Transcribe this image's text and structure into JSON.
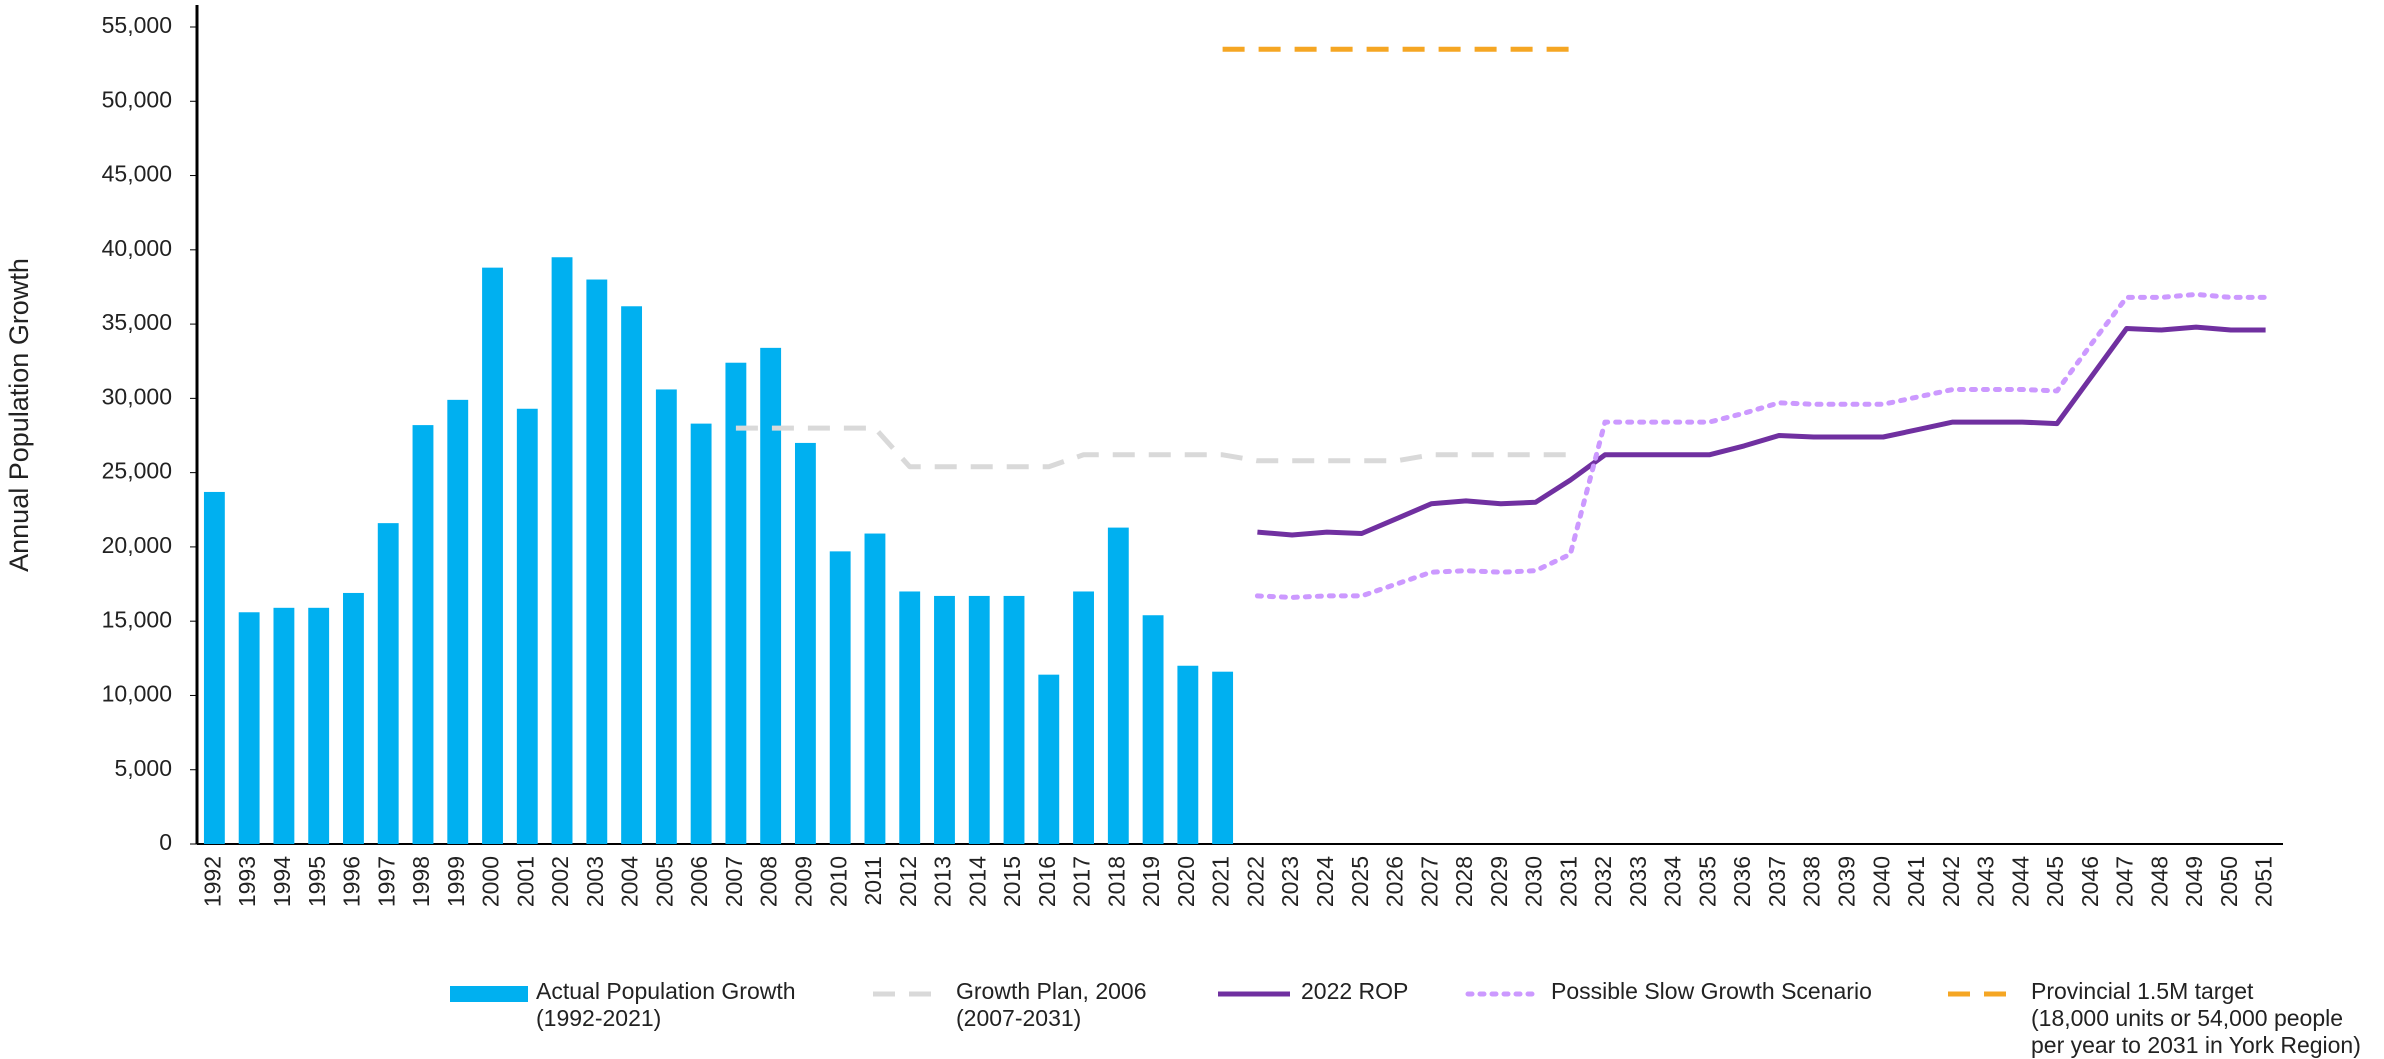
{
  "chart_data": {
    "type": "bar_line",
    "y_label": "Annual Population Growth",
    "categories": [
      "1992",
      "1993",
      "1994",
      "1995",
      "1996",
      "1997",
      "1998",
      "1999",
      "2000",
      "2001",
      "2002",
      "2003",
      "2004",
      "2005",
      "2006",
      "2007",
      "2008",
      "2009",
      "2010",
      "2011",
      "2012",
      "2013",
      "2014",
      "2015",
      "2016",
      "2017",
      "2018",
      "2019",
      "2020",
      "2021",
      "2022",
      "2023",
      "2024",
      "2025",
      "2026",
      "2027",
      "2028",
      "2029",
      "2030",
      "2031",
      "2032",
      "2033",
      "2034",
      "2035",
      "2036",
      "2037",
      "2038",
      "2039",
      "2040",
      "2041",
      "2042",
      "2043",
      "2044",
      "2045",
      "2046",
      "2047",
      "2048",
      "2049",
      "2050",
      "2051"
    ],
    "ylim": [
      0,
      55000
    ],
    "yticks": [
      0,
      {
        "value": 5000,
        "label": "5,000"
      },
      {
        "value": 10000,
        "label": "10,000"
      },
      {
        "value": 15000,
        "label": "15,000"
      },
      {
        "value": 20000,
        "label": "20,000"
      },
      {
        "value": 25000,
        "label": "25,000"
      },
      {
        "value": 30000,
        "label": "30,000"
      },
      {
        "value": 35000,
        "label": "35,000"
      },
      {
        "value": 40000,
        "label": "40,000"
      },
      {
        "value": 45000,
        "label": "45,000"
      },
      {
        "value": 50000,
        "label": "50,000"
      },
      {
        "value": 55000,
        "label": "55,000"
      }
    ],
    "series": [
      {
        "name": "Actual Population Growth\n(1992-2021)",
        "kind": "bar",
        "color": "#00b0f0",
        "values": [
          23700,
          15600,
          15900,
          15900,
          16900,
          21600,
          28200,
          29900,
          38800,
          29300,
          39500,
          38000,
          36200,
          30600,
          28300,
          32400,
          33400,
          27000,
          19700,
          20900,
          17000,
          16700,
          16700,
          16700,
          11400,
          17000,
          21300,
          15400,
          12000,
          11600,
          null,
          null,
          null,
          null,
          null,
          null,
          null,
          null,
          null,
          null,
          null,
          null,
          null,
          null,
          null,
          null,
          null,
          null,
          null,
          null,
          null,
          null,
          null,
          null,
          null,
          null,
          null,
          null,
          null,
          null
        ]
      },
      {
        "name": "Growth Plan, 2006\n(2007-2031)",
        "kind": "line",
        "style": "dashed",
        "color": "#d9d9d9",
        "values": [
          null,
          null,
          null,
          null,
          null,
          null,
          null,
          null,
          null,
          null,
          null,
          null,
          null,
          null,
          null,
          28000,
          28000,
          28000,
          28000,
          28000,
          25400,
          25400,
          25400,
          25400,
          25400,
          26200,
          26200,
          26200,
          26200,
          26200,
          25800,
          25800,
          25800,
          25800,
          25800,
          26200,
          26200,
          26200,
          26200,
          26200,
          null,
          null,
          null,
          null,
          null,
          null,
          null,
          null,
          null,
          null,
          null,
          null,
          null,
          null,
          null,
          null,
          null,
          null,
          null,
          null
        ]
      },
      {
        "name": "2022 ROP",
        "kind": "line",
        "style": "solid",
        "color": "#7030a0",
        "values": [
          null,
          null,
          null,
          null,
          null,
          null,
          null,
          null,
          null,
          null,
          null,
          null,
          null,
          null,
          null,
          null,
          null,
          null,
          null,
          null,
          null,
          null,
          null,
          null,
          null,
          null,
          null,
          null,
          null,
          null,
          21000,
          20800,
          21000,
          20900,
          21900,
          22900,
          23100,
          22900,
          23000,
          24500,
          26200,
          26200,
          26200,
          26200,
          26800,
          27500,
          27400,
          27400,
          27400,
          27900,
          28400,
          28400,
          28400,
          28300,
          31500,
          34700,
          34600,
          34800,
          34600,
          34600
        ]
      },
      {
        "name": "Possible Slow Growth Scenario",
        "kind": "line",
        "style": "dotted",
        "color": "#cc99ff",
        "values": [
          null,
          null,
          null,
          null,
          null,
          null,
          null,
          null,
          null,
          null,
          null,
          null,
          null,
          null,
          null,
          null,
          null,
          null,
          null,
          null,
          null,
          null,
          null,
          null,
          null,
          null,
          null,
          null,
          null,
          null,
          16700,
          16600,
          16700,
          16700,
          17500,
          18300,
          18400,
          18300,
          18400,
          19500,
          28400,
          28400,
          28400,
          28400,
          29000,
          29700,
          29600,
          29600,
          29600,
          30100,
          30600,
          30600,
          30600,
          30500,
          33700,
          36800,
          36800,
          37000,
          36800,
          36800
        ]
      },
      {
        "name": "Provincial 1.5M target\n(18,000 units or 54,000 people\nper year to 2031 in York Region)",
        "kind": "line",
        "style": "dashed",
        "color": "#f5a623",
        "values": [
          null,
          null,
          null,
          null,
          null,
          null,
          null,
          null,
          null,
          null,
          null,
          null,
          null,
          null,
          null,
          null,
          null,
          null,
          null,
          null,
          null,
          null,
          null,
          null,
          null,
          null,
          null,
          null,
          null,
          53500,
          53500,
          53500,
          53500,
          53500,
          53500,
          53500,
          53500,
          53500,
          53500,
          53500,
          null,
          null,
          null,
          null,
          null,
          null,
          null,
          null,
          null,
          null,
          null,
          null,
          null,
          null,
          null,
          null,
          null,
          null,
          null,
          null
        ]
      }
    ]
  }
}
